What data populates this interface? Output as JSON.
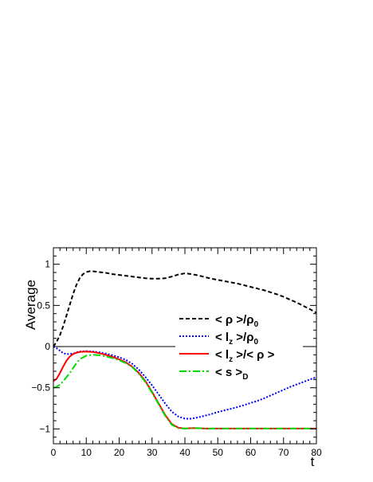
{
  "chart_data": {
    "type": "line",
    "title": "",
    "xlabel": "t",
    "ylabel": "Average",
    "xlim": [
      0,
      80
    ],
    "ylim": [
      -1.18,
      1.2
    ],
    "x_ticks": [
      0,
      10,
      20,
      30,
      40,
      50,
      60,
      70,
      80
    ],
    "x_tick_labels": [
      "0",
      "10",
      "20",
      "30",
      "40",
      "50",
      "60",
      "70",
      "80"
    ],
    "y_ticks": [
      -1,
      -0.5,
      0,
      0.5,
      1
    ],
    "y_tick_labels": [
      "−1",
      "−0.5",
      "0",
      "0.5",
      "1"
    ],
    "grid": false,
    "reference_line_y": 0,
    "legend_position": "right",
    "series": [
      {
        "name": "< ρ >/ρ",
        "name_sub": "0",
        "color": "#000000",
        "dash": "5,3",
        "x": [
          0,
          1,
          2,
          3,
          4,
          5,
          6,
          7,
          8,
          9,
          10,
          11,
          12,
          14,
          16,
          18,
          20,
          22,
          24,
          26,
          28,
          30,
          32,
          34,
          36,
          38,
          40,
          42,
          44,
          46,
          48,
          50,
          52,
          54,
          56,
          58,
          60,
          62,
          64,
          66,
          68,
          70,
          72,
          74,
          76,
          78,
          80
        ],
        "y": [
          0.0,
          0.06,
          0.14,
          0.25,
          0.38,
          0.51,
          0.64,
          0.75,
          0.83,
          0.88,
          0.905,
          0.915,
          0.915,
          0.905,
          0.895,
          0.88,
          0.87,
          0.86,
          0.85,
          0.84,
          0.83,
          0.825,
          0.825,
          0.83,
          0.85,
          0.875,
          0.89,
          0.88,
          0.865,
          0.845,
          0.825,
          0.81,
          0.795,
          0.78,
          0.765,
          0.745,
          0.725,
          0.705,
          0.685,
          0.66,
          0.635,
          0.605,
          0.57,
          0.535,
          0.495,
          0.455,
          0.41
        ]
      },
      {
        "name": "< l",
        "name_sub": "z",
        "name_rest": " >/ρ",
        "name_sub2": "0",
        "color": "#0000ff",
        "dash": "2,2",
        "x": [
          0,
          1,
          2,
          3,
          4,
          5,
          6,
          7,
          8,
          10,
          12,
          14,
          16,
          18,
          20,
          22,
          24,
          26,
          28,
          30,
          32,
          34,
          36,
          38,
          40,
          42,
          44,
          46,
          48,
          50,
          52,
          54,
          56,
          58,
          60,
          62,
          64,
          66,
          68,
          70,
          72,
          74,
          76,
          78,
          80
        ],
        "y": [
          0.0,
          -0.02,
          -0.05,
          -0.08,
          -0.09,
          -0.09,
          -0.085,
          -0.07,
          -0.06,
          -0.055,
          -0.06,
          -0.07,
          -0.085,
          -0.105,
          -0.13,
          -0.16,
          -0.21,
          -0.28,
          -0.37,
          -0.47,
          -0.58,
          -0.69,
          -0.79,
          -0.85,
          -0.875,
          -0.875,
          -0.86,
          -0.84,
          -0.82,
          -0.795,
          -0.775,
          -0.755,
          -0.735,
          -0.71,
          -0.685,
          -0.66,
          -0.63,
          -0.595,
          -0.56,
          -0.525,
          -0.49,
          -0.46,
          -0.43,
          -0.4,
          -0.37
        ]
      },
      {
        "name": "< l",
        "name_sub": "z",
        "name_rest": " >/< ρ >",
        "color": "#ff0000",
        "dash": "",
        "x": [
          0,
          1,
          2,
          3,
          4,
          5,
          6,
          7,
          8,
          10,
          12,
          14,
          16,
          18,
          20,
          22,
          24,
          26,
          28,
          30,
          32,
          34,
          36,
          38,
          40,
          42,
          44,
          46,
          50,
          55,
          60,
          65,
          70,
          75,
          80
        ],
        "y": [
          -0.42,
          -0.39,
          -0.32,
          -0.24,
          -0.17,
          -0.12,
          -0.09,
          -0.075,
          -0.065,
          -0.06,
          -0.065,
          -0.08,
          -0.1,
          -0.125,
          -0.155,
          -0.19,
          -0.245,
          -0.32,
          -0.42,
          -0.55,
          -0.69,
          -0.83,
          -0.94,
          -0.985,
          -0.995,
          -0.99,
          -0.99,
          -0.995,
          -0.995,
          -0.995,
          -0.995,
          -0.995,
          -0.995,
          -0.995,
          -0.995
        ]
      },
      {
        "name": "< s >",
        "name_sub": "D",
        "color": "#00dd00",
        "dash": "9,3,2,3",
        "x": [
          0,
          1,
          2,
          3,
          4,
          5,
          6,
          7,
          8,
          10,
          12,
          14,
          16,
          18,
          20,
          22,
          24,
          26,
          28,
          30,
          32,
          34,
          36,
          38,
          40,
          42,
          44,
          46,
          50,
          55,
          60,
          65,
          70,
          75,
          80
        ],
        "y": [
          -0.5,
          -0.49,
          -0.46,
          -0.42,
          -0.37,
          -0.32,
          -0.26,
          -0.2,
          -0.155,
          -0.11,
          -0.1,
          -0.105,
          -0.12,
          -0.14,
          -0.165,
          -0.2,
          -0.25,
          -0.33,
          -0.43,
          -0.56,
          -0.7,
          -0.84,
          -0.95,
          -0.99,
          -0.995,
          -0.99,
          -0.99,
          -0.995,
          -0.995,
          -0.995,
          -0.995,
          -0.995,
          -0.995,
          -0.995,
          -0.995
        ]
      }
    ]
  }
}
